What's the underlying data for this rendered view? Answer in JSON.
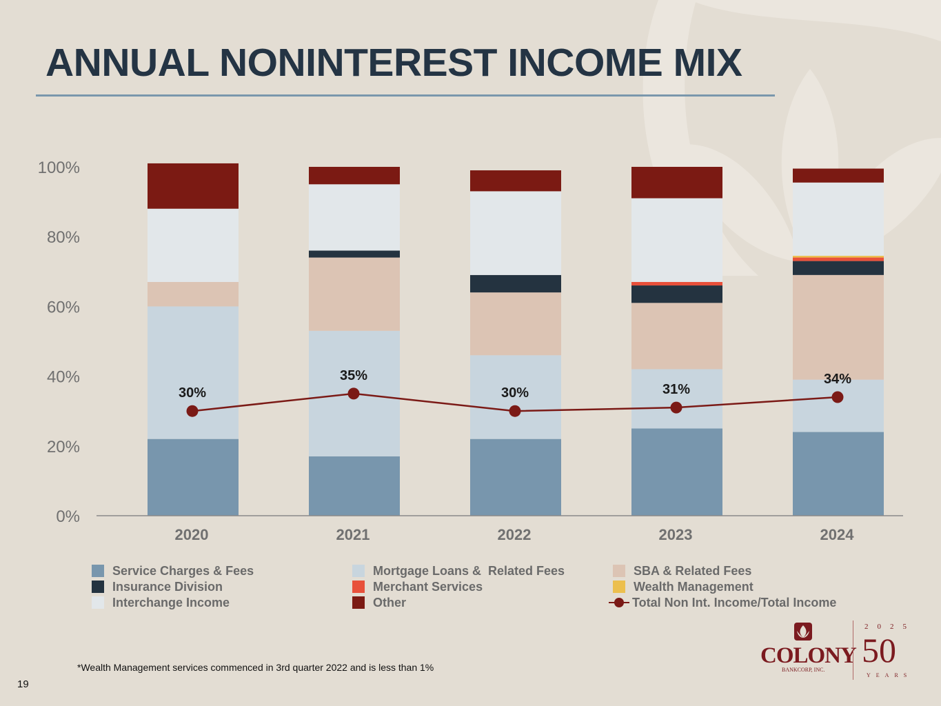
{
  "slide": {
    "title": "ANNUAL NONINTEREST INCOME MIX",
    "footnote": "*Wealth Management services commenced in 3rd quarter 2022 and is less than 1%",
    "page_number": "19"
  },
  "logo": {
    "name": "COLONY",
    "sub": "BANKCORP, INC.",
    "anniversary_year": "2025",
    "anniversary_number": "50",
    "anniversary_word": "YEARS"
  },
  "colors": {
    "background": "#e3ddd3",
    "title": "#243444",
    "axis_text": "#707070",
    "line": "#7b1a16"
  },
  "chart_data": {
    "type": "bar",
    "stacked": true,
    "percent_axis": true,
    "categories": [
      "2020",
      "2021",
      "2022",
      "2023",
      "2024"
    ],
    "ylim": [
      0,
      100
    ],
    "yticks": [
      0,
      20,
      40,
      60,
      80,
      100
    ],
    "ytick_labels": [
      "0%",
      "20%",
      "40%",
      "60%",
      "80%",
      "100%"
    ],
    "series": [
      {
        "name": "Service Charges & Fees",
        "color": "#7896ad",
        "values": [
          22,
          17,
          22,
          25,
          24
        ]
      },
      {
        "name": "Mortgage Loans &  Related Fees",
        "color": "#c8d5de",
        "values": [
          38,
          36,
          24,
          17,
          15
        ]
      },
      {
        "name": "SBA & Related Fees",
        "color": "#dcc4b4",
        "values": [
          7,
          21,
          18,
          19,
          30
        ]
      },
      {
        "name": "Insurance Division",
        "color": "#243340",
        "values": [
          0,
          2,
          5,
          5,
          4
        ]
      },
      {
        "name": "Merchant Services",
        "color": "#e8503a",
        "values": [
          0,
          0,
          0,
          1,
          1
        ]
      },
      {
        "name": "Wealth Management",
        "color": "#ecbf4e",
        "values": [
          0,
          0,
          0,
          0,
          0.5
        ]
      },
      {
        "name": "Interchange Income",
        "color": "#e2e7ea",
        "values": [
          21,
          19,
          24,
          24,
          21
        ]
      },
      {
        "name": "Other",
        "color": "#7b1a13",
        "values": [
          13,
          5,
          6,
          9,
          4
        ]
      }
    ],
    "line_series": {
      "name": "Total Non Int. Income/Total Income",
      "color": "#7b1a16",
      "values": [
        30,
        35,
        30,
        31,
        34
      ],
      "labels": [
        "30%",
        "35%",
        "30%",
        "31%",
        "34%"
      ]
    },
    "legend": [
      "Service Charges & Fees",
      "Mortgage Loans &  Related Fees",
      "SBA & Related Fees",
      "Insurance Division",
      "Merchant Services",
      "Wealth Management",
      "Interchange Income",
      "Other",
      "Total Non Int. Income/Total Income"
    ]
  }
}
